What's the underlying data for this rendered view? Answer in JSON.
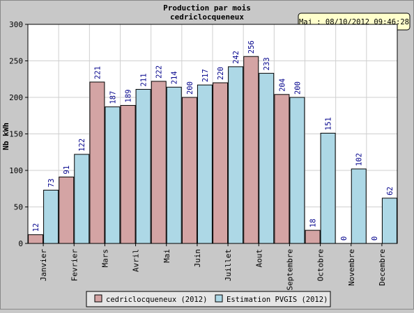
{
  "chart_data": {
    "type": "bar",
    "title": "Production par mois",
    "subtitle": "cedriclocqueneux",
    "update_label": "Maj : 08/10/2012 09:46:28",
    "xlabel": "",
    "ylabel": "Nb kWh",
    "ylim": [
      0,
      300
    ],
    "yticks": [
      0,
      50,
      100,
      150,
      200,
      250,
      300
    ],
    "grid": true,
    "legend_position": "bottom-center",
    "categories": [
      "Janvier",
      "Fevrier",
      "Mars",
      "Avril",
      "Mai",
      "Juin",
      "Juillet",
      "Aout",
      "Septembre",
      "Octobre",
      "Novembre",
      "Decembre"
    ],
    "series": [
      {
        "name": "cedriclocqueneux (2012)",
        "color": "#d4a4a4",
        "values": [
          12,
          91,
          221,
          189,
          222,
          200,
          220,
          256,
          204,
          18,
          0,
          0
        ]
      },
      {
        "name": "Estimation PVGIS (2012)",
        "color": "#add8e6",
        "values": [
          73,
          122,
          187,
          211,
          214,
          217,
          242,
          233,
          200,
          151,
          102,
          62
        ]
      }
    ],
    "label_color": "#00008b"
  }
}
